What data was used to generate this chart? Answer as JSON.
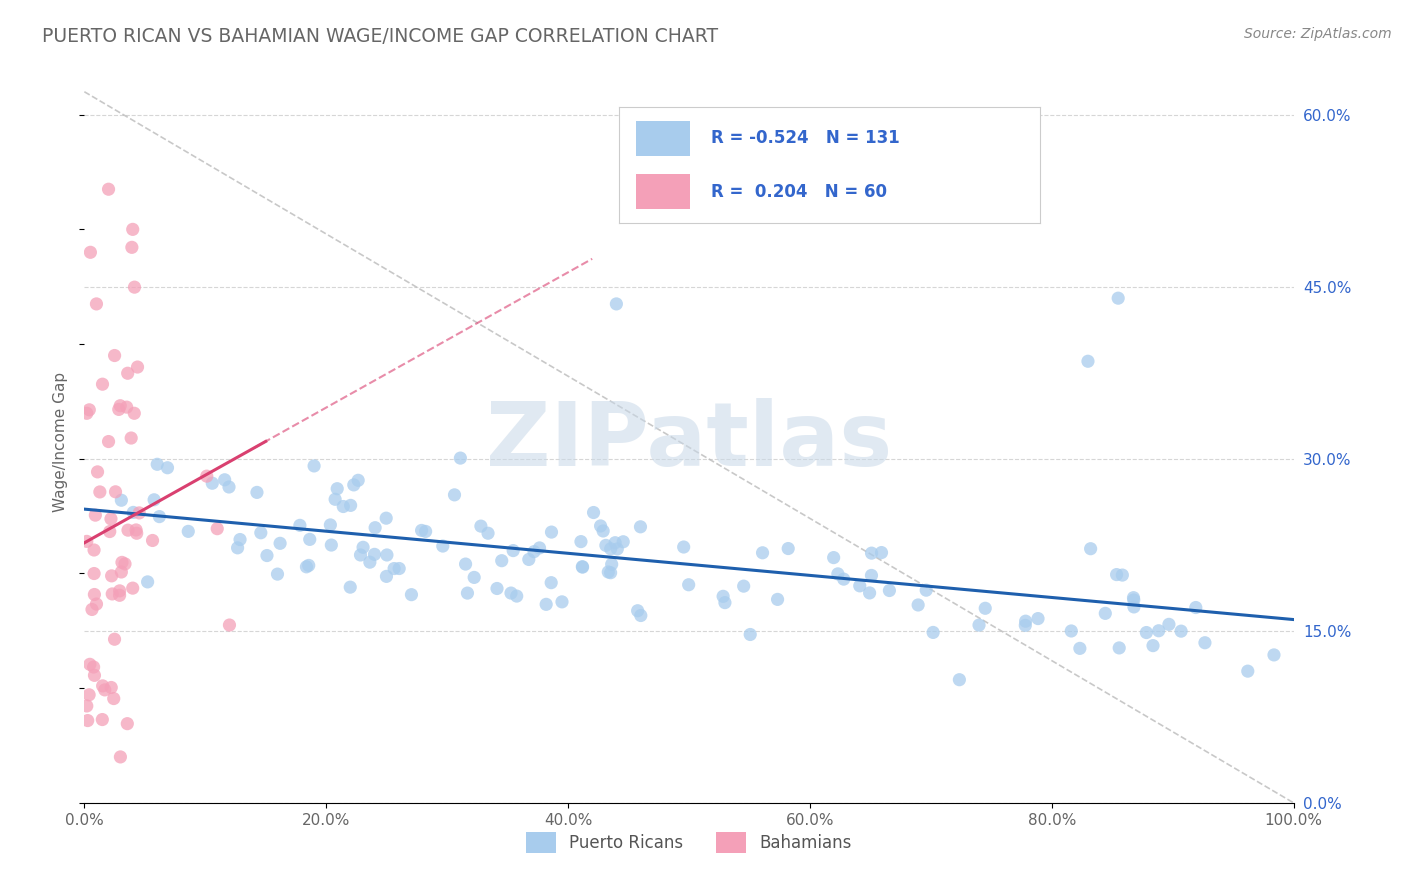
{
  "title": "PUERTO RICAN VS BAHAMIAN WAGE/INCOME GAP CORRELATION CHART",
  "source_text": "Source: ZipAtlas.com",
  "ylabel": "Wage/Income Gap",
  "xlim": [
    0,
    1
  ],
  "ylim": [
    0.0,
    0.63
  ],
  "xticks": [
    0.0,
    0.2,
    0.4,
    0.6,
    0.8,
    1.0
  ],
  "xtick_labels": [
    "0.0%",
    "20.0%",
    "40.0%",
    "60.0%",
    "80.0%",
    "100.0%"
  ],
  "yticks_right": [
    0.0,
    0.15,
    0.3,
    0.45,
    0.6
  ],
  "ytick_labels_right": [
    "0.0%",
    "15.0%",
    "30.0%",
    "45.0%",
    "60.0%"
  ],
  "blue_R": -0.524,
  "blue_N": 131,
  "pink_R": 0.204,
  "pink_N": 60,
  "blue_color": "#A8CCED",
  "pink_color": "#F4A0B8",
  "blue_line_color": "#1E5FAD",
  "pink_line_color": "#D94070",
  "legend_text_color": "#3366CC",
  "title_color": "#666666",
  "source_color": "#888888",
  "watermark": "ZIPatlas",
  "watermark_color": "#C8D8E8",
  "grid_color": "#CCCCCC",
  "background_color": "#FFFFFF",
  "figsize": [
    14.06,
    8.92
  ],
  "dpi": 100
}
